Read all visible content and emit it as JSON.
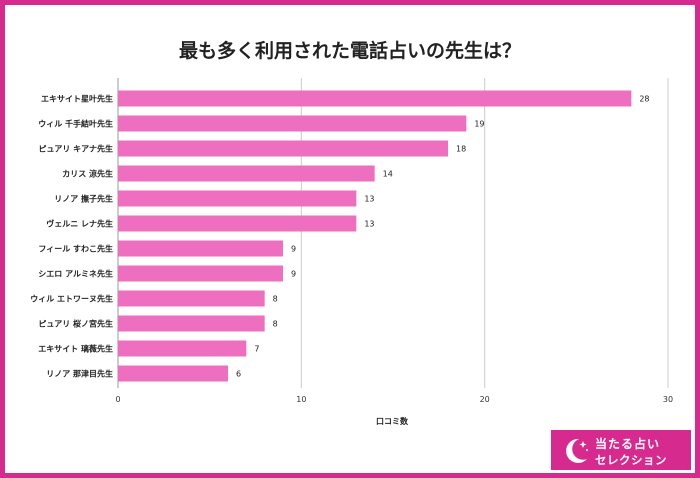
{
  "title": "最も多く利用された電話占いの先生は？",
  "colors": {
    "frame": "#d62a8e",
    "bar": "#ee6fbf",
    "grid": "#cccccc"
  },
  "logo": {
    "line1": "当たる占い",
    "line2": "セレクション",
    "icon": "crescent-moon-icon"
  },
  "chart_data": {
    "type": "bar",
    "orientation": "horizontal",
    "title": "最も多く利用された電話占いの先生は？",
    "xlabel": "口コミ数",
    "ylabel": "",
    "xlim": [
      0,
      30
    ],
    "xticks": [
      0,
      10,
      20,
      30
    ],
    "grid": true,
    "categories": [
      "エキサイト星叶先生",
      "ウィル 千手結叶先生",
      "ピュアリ キアナ先生",
      "カリス 涼先生",
      "リノア 撫子先生",
      "ヴェルニ レナ先生",
      "フィール すわこ先生",
      "シエロ アルミネ先生",
      "ウィル エトワーヌ先生",
      "ピュアリ 桜ノ宮先生",
      "エキサイト 璃薇先生",
      "リノア 那津目先生"
    ],
    "values": [
      28,
      19,
      18,
      14,
      13,
      13,
      9,
      9,
      8,
      8,
      7,
      6
    ]
  }
}
